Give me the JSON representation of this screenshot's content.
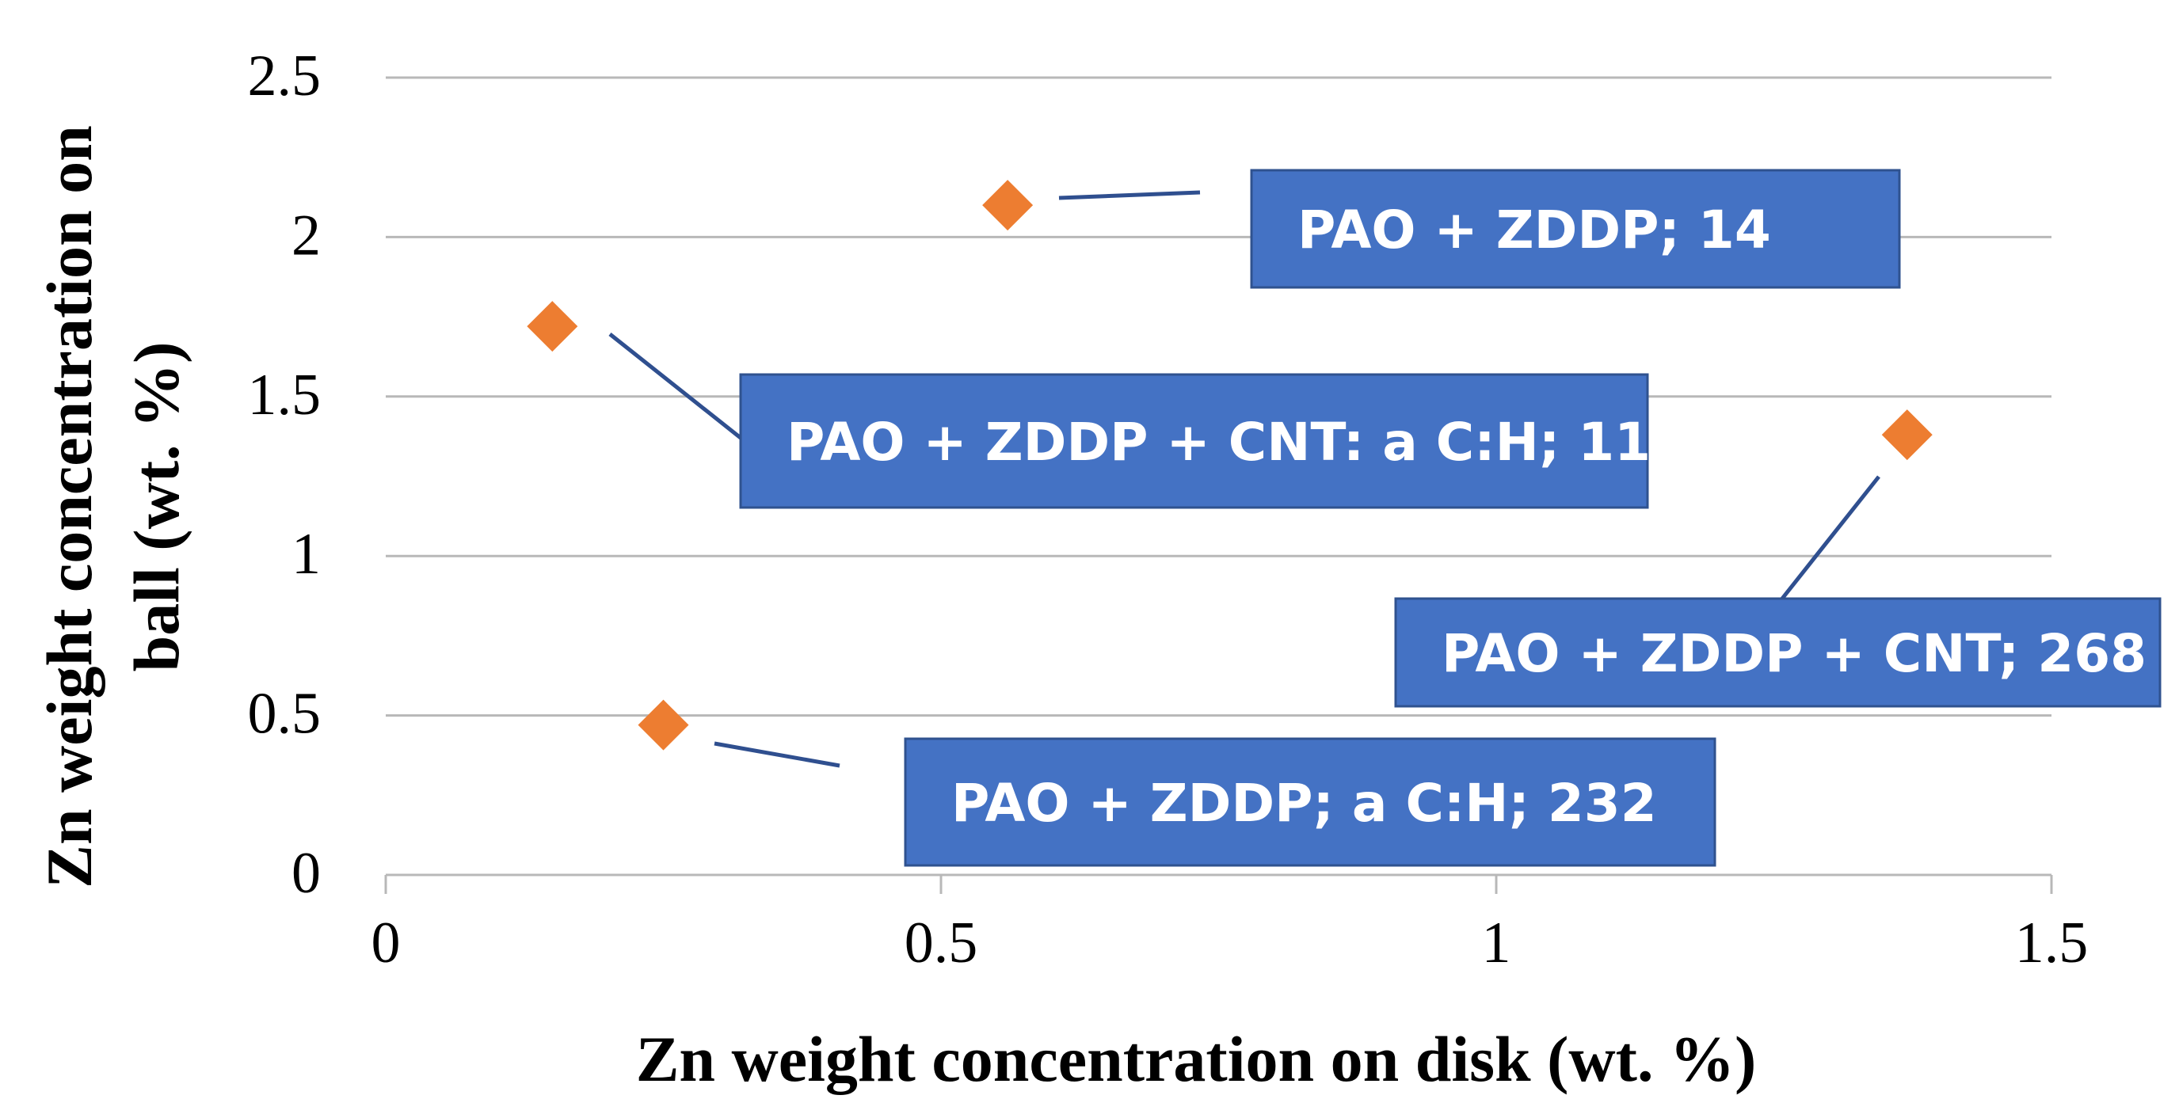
{
  "chart_data": {
    "type": "scatter",
    "title": "",
    "xlabel": "Zn weight concentration on disk (wt. %)",
    "ylabel_lines": [
      "Zn weight concentration on",
      "ball (wt. %)"
    ],
    "xlim": [
      0,
      1.5
    ],
    "ylim": [
      0,
      2.5
    ],
    "x_ticks": [
      "0",
      "0.5",
      "1",
      "1.5"
    ],
    "y_ticks": [
      "0",
      "0.5",
      "1",
      "1.5",
      "2",
      "2.5"
    ],
    "grid": "horizontal",
    "marker_color": "#ED7D31",
    "label_color": "#4472C4",
    "points": [
      {
        "name": "PAO + ZDDP",
        "x": 0.56,
        "y": 2.1,
        "label": "PAO + ZDDP; 14"
      },
      {
        "name": "PAO + ZDDP + CNT: a C:H",
        "x": 0.15,
        "y": 1.72,
        "label": "PAO + ZDDP + CNT: a C:H;  11"
      },
      {
        "name": "PAO + ZDDP + CNT",
        "x": 1.37,
        "y": 1.38,
        "label": "PAO + ZDDP + CNT; 268"
      },
      {
        "name": "PAO + ZDDP; a C:H",
        "x": 0.25,
        "y": 0.47,
        "label": "PAO + ZDDP; a C:H;  232"
      }
    ]
  }
}
